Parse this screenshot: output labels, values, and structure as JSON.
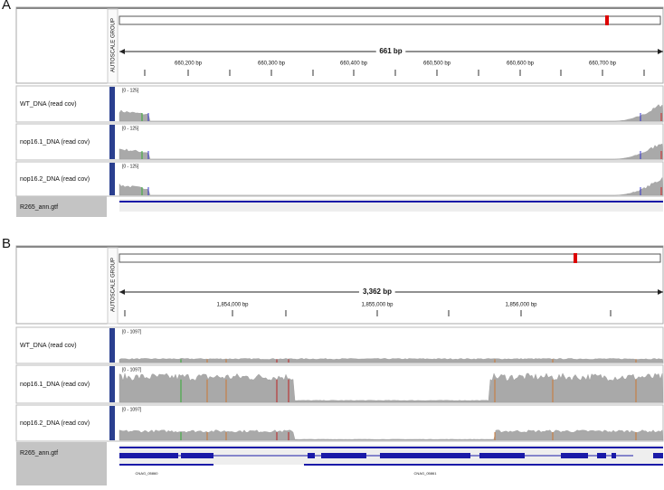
{
  "panels": [
    {
      "label": "A",
      "autoscale": "AUTOSCALE GROUP",
      "span": "661 bp",
      "ruler": [
        "660,200 bp",
        "660,300 bp",
        "660,400 bp",
        "660,500 bp",
        "660,600 bp",
        "660,700 bp"
      ],
      "tracks": [
        {
          "name": "WT_DNA (read cov)",
          "range": "[0 - 125]"
        },
        {
          "name": "nop16.1_DNA (read cov)",
          "range": "[0 - 125]"
        },
        {
          "name": "nop16.2_DNA (read cov)",
          "range": "[0 - 125]"
        }
      ],
      "annotation": {
        "name": "R265_ann.gtf",
        "genes": []
      }
    },
    {
      "label": "B",
      "autoscale": "AUTOSCALE GROUP",
      "span": "3,362 bp",
      "ruler": [
        "1,854,000 bp",
        "1,855,000 bp",
        "1,856,000 bp"
      ],
      "tracks": [
        {
          "name": "WT_DNA (read cov)",
          "range": "[0 - 1097]"
        },
        {
          "name": "nop16.1_DNA (read cov)",
          "range": "[0 - 1097]"
        },
        {
          "name": "nop16.2_DNA (read cov)",
          "range": "[0 - 1097]"
        }
      ],
      "annotation": {
        "name": "R265_ann.gtf",
        "genes": [
          "CNAG_05860",
          "CNAG_05861"
        ]
      }
    }
  ]
}
